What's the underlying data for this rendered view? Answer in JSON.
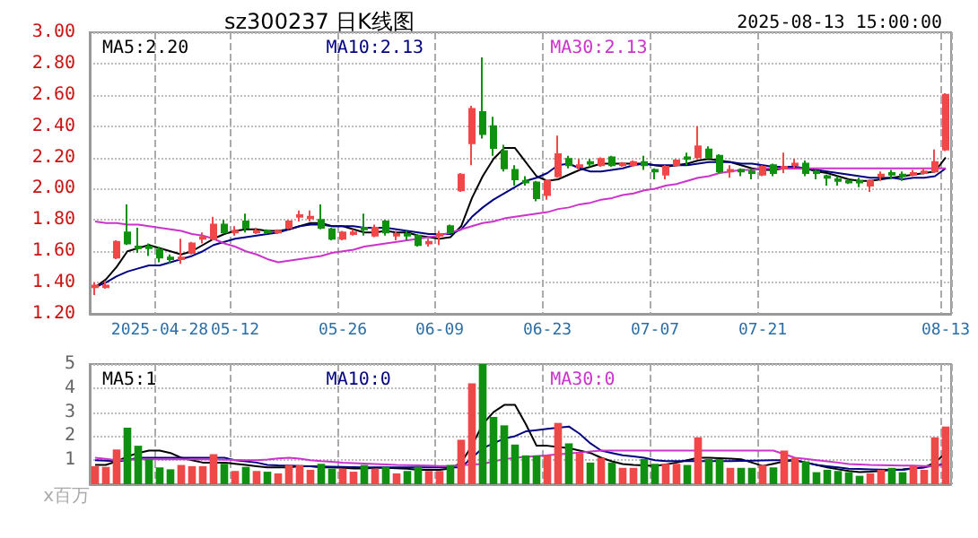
{
  "chart_data": [
    {
      "type": "candlestick",
      "title": "sz300237 日K线图",
      "subtitle": "2025-08-13 15:00:00",
      "categories": [
        null,
        null,
        null,
        null,
        null,
        null,
        "2025-04-28",
        null,
        null,
        null,
        null,
        null,
        null,
        "05-12",
        null,
        null,
        null,
        null,
        null,
        null,
        null,
        null,
        null,
        "05-26",
        null,
        null,
        null,
        null,
        null,
        null,
        null,
        null,
        "06-09",
        null,
        null,
        null,
        null,
        null,
        null,
        null,
        null,
        null,
        "06-23",
        null,
        null,
        null,
        null,
        null,
        null,
        null,
        null,
        null,
        "07-07",
        null,
        null,
        null,
        null,
        null,
        null,
        null,
        null,
        null,
        "07-21",
        null,
        null,
        null,
        null,
        null,
        null,
        null,
        null,
        null,
        null,
        null,
        null,
        null,
        null,
        null,
        null,
        "08-13"
      ],
      "ohlc": [
        [
          1.37,
          1.4,
          1.32,
          1.38
        ],
        [
          1.37,
          1.41,
          1.36,
          1.38
        ],
        [
          1.56,
          1.67,
          1.55,
          1.66
        ],
        [
          1.72,
          1.9,
          1.64,
          1.65
        ],
        [
          1.63,
          1.75,
          1.59,
          1.62
        ],
        [
          1.63,
          1.65,
          1.57,
          1.62
        ],
        [
          1.61,
          1.63,
          1.53,
          1.56
        ],
        [
          1.56,
          1.58,
          1.52,
          1.55
        ],
        [
          1.55,
          1.68,
          1.52,
          1.56
        ],
        [
          1.59,
          1.66,
          1.58,
          1.65
        ],
        [
          1.68,
          1.72,
          1.65,
          1.69
        ],
        [
          1.68,
          1.82,
          1.67,
          1.77
        ],
        [
          1.77,
          1.8,
          1.71,
          1.72
        ],
        [
          1.72,
          1.76,
          1.7,
          1.73
        ],
        [
          1.79,
          1.84,
          1.72,
          1.75
        ],
        [
          1.72,
          1.75,
          1.71,
          1.73
        ],
        [
          1.73,
          1.74,
          1.71,
          1.72
        ],
        [
          1.72,
          1.74,
          1.71,
          1.73
        ],
        [
          1.75,
          1.8,
          1.74,
          1.79
        ],
        [
          1.82,
          1.86,
          1.79,
          1.83
        ],
        [
          1.81,
          1.86,
          1.79,
          1.82
        ],
        [
          1.8,
          1.9,
          1.74,
          1.75
        ],
        [
          1.74,
          1.75,
          1.67,
          1.68
        ],
        [
          1.68,
          1.73,
          1.67,
          1.72
        ],
        [
          1.71,
          1.74,
          1.7,
          1.72
        ],
        [
          1.75,
          1.84,
          1.7,
          1.74
        ],
        [
          1.7,
          1.77,
          1.69,
          1.75
        ],
        [
          1.79,
          1.8,
          1.7,
          1.72
        ],
        [
          1.7,
          1.73,
          1.67,
          1.71
        ],
        [
          1.71,
          1.73,
          1.67,
          1.7
        ],
        [
          1.7,
          1.71,
          1.63,
          1.64
        ],
        [
          1.65,
          1.68,
          1.63,
          1.66
        ],
        [
          1.7,
          1.73,
          1.64,
          1.71
        ],
        [
          1.76,
          1.77,
          1.71,
          1.72
        ],
        [
          1.99,
          2.1,
          1.98,
          2.09
        ],
        [
          2.29,
          2.53,
          2.15,
          2.51
        ],
        [
          2.49,
          2.84,
          2.32,
          2.35
        ],
        [
          2.4,
          2.46,
          2.21,
          2.26
        ],
        [
          2.24,
          2.28,
          2.11,
          2.13
        ],
        [
          2.12,
          2.15,
          2.02,
          2.06
        ],
        [
          2.05,
          2.08,
          2.02,
          2.04
        ],
        [
          2.04,
          2.05,
          1.92,
          1.94
        ],
        [
          1.96,
          2.06,
          1.93,
          2.05
        ],
        [
          2.08,
          2.34,
          2.07,
          2.22
        ],
        [
          2.19,
          2.21,
          2.13,
          2.15
        ],
        [
          2.14,
          2.19,
          2.12,
          2.15
        ],
        [
          2.17,
          2.19,
          2.14,
          2.16
        ],
        [
          2.15,
          2.2,
          2.14,
          2.19
        ],
        [
          2.2,
          2.21,
          2.14,
          2.15
        ],
        [
          2.15,
          2.17,
          2.14,
          2.16
        ],
        [
          2.15,
          2.18,
          2.14,
          2.17
        ],
        [
          2.17,
          2.21,
          2.12,
          2.15
        ],
        [
          2.12,
          2.13,
          2.06,
          2.11
        ],
        [
          2.09,
          2.15,
          2.06,
          2.14
        ],
        [
          2.15,
          2.19,
          2.14,
          2.18
        ],
        [
          2.2,
          2.23,
          2.15,
          2.19
        ],
        [
          2.2,
          2.4,
          2.19,
          2.27
        ],
        [
          2.25,
          2.27,
          2.19,
          2.2
        ],
        [
          2.21,
          2.22,
          2.1,
          2.11
        ],
        [
          2.11,
          2.15,
          2.07,
          2.12
        ],
        [
          2.12,
          2.13,
          2.08,
          2.11
        ],
        [
          2.11,
          2.13,
          2.06,
          2.1
        ],
        [
          2.09,
          2.15,
          2.08,
          2.14
        ],
        [
          2.15,
          2.16,
          2.08,
          2.1
        ],
        [
          2.13,
          2.23,
          2.1,
          2.14
        ],
        [
          2.15,
          2.19,
          2.13,
          2.16
        ],
        [
          2.16,
          2.18,
          2.08,
          2.1
        ],
        [
          2.11,
          2.12,
          2.06,
          2.1
        ],
        [
          2.08,
          2.09,
          2.02,
          2.07
        ],
        [
          2.06,
          2.08,
          2.02,
          2.05
        ],
        [
          2.05,
          2.06,
          2.03,
          2.04
        ],
        [
          2.05,
          2.07,
          2.01,
          2.04
        ],
        [
          2.02,
          2.06,
          1.98,
          2.05
        ],
        [
          2.08,
          2.11,
          2.05,
          2.09
        ],
        [
          2.1,
          2.12,
          2.06,
          2.09
        ],
        [
          2.09,
          2.11,
          2.05,
          2.08
        ],
        [
          2.09,
          2.12,
          2.08,
          2.1
        ],
        [
          2.1,
          2.13,
          2.09,
          2.11
        ],
        [
          2.11,
          2.25,
          2.1,
          2.17
        ],
        [
          2.25,
          2.61,
          2.24,
          2.6
        ]
      ],
      "colors": [
        "#f04848",
        "#f04848",
        "#f04848",
        "#109010",
        "#109010",
        "#109010",
        "#109010",
        "#109010",
        "#f04848",
        "#f04848",
        "#f04848",
        "#f04848",
        "#109010",
        "#f04848",
        "#109010",
        "#f04848",
        "#109010",
        "#f04848",
        "#f04848",
        "#f04848",
        "#f04848",
        "#109010",
        "#109010",
        "#f04848",
        "#f04848",
        "#109010",
        "#f04848",
        "#109010",
        "#f04848",
        "#109010",
        "#109010",
        "#f04848",
        "#f04848",
        "#109010",
        "#f04848",
        "#f04848",
        "#109010",
        "#109010",
        "#109010",
        "#109010",
        "#109010",
        "#109010",
        "#f04848",
        "#f04848",
        "#109010",
        "#f04848",
        "#109010",
        "#f04848",
        "#109010",
        "#f04848",
        "#f04848",
        "#109010",
        "#109010",
        "#f04848",
        "#f04848",
        "#109010",
        "#f04848",
        "#109010",
        "#109010",
        "#f04848",
        "#109010",
        "#109010",
        "#f04848",
        "#109010",
        "#f04848",
        "#f04848",
        "#109010",
        "#109010",
        "#109010",
        "#109010",
        "#109010",
        "#109010",
        "#f04848",
        "#f04848",
        "#109010",
        "#109010",
        "#f04848",
        "#f04848",
        "#f04848",
        "#f04848"
      ],
      "series": [
        {
          "type": "line",
          "name": "MA5:2.20",
          "color": "#000000",
          "values": [
            1.37,
            1.42,
            1.5,
            1.6,
            1.62,
            1.64,
            1.62,
            1.6,
            1.58,
            1.6,
            1.64,
            1.68,
            1.71,
            1.73,
            1.74,
            1.74,
            1.73,
            1.73,
            1.74,
            1.76,
            1.78,
            1.78,
            1.76,
            1.76,
            1.74,
            1.72,
            1.72,
            1.73,
            1.72,
            1.72,
            1.7,
            1.69,
            1.68,
            1.69,
            1.76,
            1.94,
            2.08,
            2.19,
            2.26,
            2.26,
            2.17,
            2.08,
            2.05,
            2.06,
            2.09,
            2.12,
            2.14,
            2.16,
            2.16,
            2.16,
            2.16,
            2.16,
            2.15,
            2.14,
            2.15,
            2.16,
            2.18,
            2.19,
            2.18,
            2.17,
            2.15,
            2.13,
            2.12,
            2.12,
            2.13,
            2.13,
            2.13,
            2.11,
            2.1,
            2.08,
            2.06,
            2.05,
            2.05,
            2.06,
            2.07,
            2.08,
            2.09,
            2.1,
            2.11,
            2.2
          ]
        },
        {
          "type": "line",
          "name": "MA10:2.13",
          "color": "#000080",
          "values": [
            1.37,
            1.4,
            1.44,
            1.47,
            1.49,
            1.51,
            1.51,
            1.53,
            1.55,
            1.57,
            1.6,
            1.64,
            1.66,
            1.68,
            1.69,
            1.7,
            1.71,
            1.72,
            1.74,
            1.76,
            1.77,
            1.77,
            1.76,
            1.76,
            1.76,
            1.75,
            1.75,
            1.75,
            1.74,
            1.73,
            1.72,
            1.71,
            1.71,
            1.71,
            1.74,
            1.82,
            1.88,
            1.93,
            1.97,
            2.01,
            2.05,
            2.07,
            2.1,
            2.15,
            2.16,
            2.13,
            2.11,
            2.11,
            2.12,
            2.13,
            2.15,
            2.16,
            2.15,
            2.15,
            2.15,
            2.15,
            2.16,
            2.17,
            2.17,
            2.17,
            2.16,
            2.16,
            2.15,
            2.14,
            2.14,
            2.14,
            2.13,
            2.12,
            2.11,
            2.1,
            2.09,
            2.08,
            2.07,
            2.07,
            2.07,
            2.06,
            2.07,
            2.07,
            2.08,
            2.13
          ]
        },
        {
          "type": "line",
          "name": "MA30:2.13",
          "color": "#cc33cc",
          "values": [
            1.79,
            1.78,
            1.78,
            1.77,
            1.77,
            1.76,
            1.75,
            1.74,
            1.73,
            1.71,
            1.7,
            1.68,
            1.65,
            1.63,
            1.6,
            1.58,
            1.55,
            1.53,
            1.54,
            1.55,
            1.56,
            1.57,
            1.59,
            1.6,
            1.61,
            1.63,
            1.64,
            1.65,
            1.66,
            1.67,
            1.68,
            1.69,
            1.7,
            1.72,
            1.74,
            1.76,
            1.78,
            1.79,
            1.81,
            1.82,
            1.83,
            1.84,
            1.85,
            1.87,
            1.88,
            1.9,
            1.91,
            1.93,
            1.94,
            1.96,
            1.97,
            1.99,
            2.0,
            2.02,
            2.03,
            2.05,
            2.07,
            2.08,
            2.1,
            2.11,
            2.12,
            2.12,
            2.13,
            2.13,
            2.13,
            2.13,
            2.13,
            2.13,
            2.13,
            2.13,
            2.13,
            2.13,
            2.13,
            2.13,
            2.13,
            2.13,
            2.13,
            2.13,
            2.13,
            2.13
          ]
        }
      ],
      "ylim": [
        1.2,
        3.0
      ],
      "yticks": [
        {
          "value": 1.2,
          "label": "1.20"
        },
        {
          "value": 1.4,
          "label": "1.40"
        },
        {
          "value": 1.6,
          "label": "1.60"
        },
        {
          "value": 1.8,
          "label": "1.80"
        },
        {
          "value": 2.0,
          "label": "2.00"
        },
        {
          "value": 2.2,
          "label": "2.20"
        },
        {
          "value": 2.4,
          "label": "2.40"
        },
        {
          "value": 2.6,
          "label": "2.60"
        },
        {
          "value": 2.8,
          "label": "2.80"
        },
        {
          "value": 3.0,
          "label": "3.00"
        }
      ],
      "grid": true,
      "legend": "top left"
    },
    {
      "type": "bar",
      "ylabel": "x百万",
      "categories": [
        null,
        null,
        null,
        null,
        null,
        null,
        null,
        null,
        null,
        null,
        null,
        null,
        null,
        null,
        null,
        null,
        null,
        null,
        null,
        null,
        null,
        null,
        null,
        null,
        null,
        null,
        null,
        null,
        null,
        null,
        null,
        null,
        null,
        null,
        null,
        null,
        null,
        null,
        null,
        null,
        null,
        null,
        null,
        null,
        null,
        null,
        null,
        null,
        null,
        null,
        null,
        null,
        null,
        null,
        null,
        null,
        null,
        null,
        null,
        null,
        null,
        null,
        null,
        null,
        null,
        null,
        null,
        null,
        null,
        null,
        null,
        null,
        null,
        null,
        null,
        null,
        null,
        null,
        null,
        null
      ],
      "values": [
        0.75,
        0.72,
        1.45,
        2.35,
        1.6,
        1.05,
        0.7,
        0.62,
        0.8,
        0.75,
        0.75,
        1.25,
        0.85,
        0.55,
        0.72,
        0.55,
        0.52,
        0.45,
        0.8,
        0.8,
        0.6,
        0.85,
        0.65,
        0.65,
        0.52,
        0.8,
        0.65,
        0.72,
        0.45,
        0.55,
        0.72,
        0.55,
        0.55,
        0.8,
        1.85,
        4.2,
        5.0,
        2.8,
        2.45,
        1.65,
        1.2,
        1.2,
        1.2,
        2.55,
        1.7,
        1.3,
        0.9,
        1.1,
        0.9,
        0.68,
        0.68,
        1.05,
        0.85,
        0.85,
        0.85,
        0.8,
        1.95,
        1.05,
        1.05,
        0.68,
        0.68,
        0.68,
        0.8,
        0.7,
        1.4,
        1.1,
        0.95,
        0.5,
        0.6,
        0.55,
        0.5,
        0.35,
        0.45,
        0.6,
        0.68,
        0.5,
        0.75,
        0.6,
        1.95,
        2.4
      ],
      "colors": [
        "#f04848",
        "#f04848",
        "#f04848",
        "#109010",
        "#109010",
        "#109010",
        "#109010",
        "#109010",
        "#f04848",
        "#f04848",
        "#f04848",
        "#f04848",
        "#109010",
        "#f04848",
        "#109010",
        "#f04848",
        "#109010",
        "#f04848",
        "#f04848",
        "#f04848",
        "#f04848",
        "#109010",
        "#109010",
        "#f04848",
        "#f04848",
        "#109010",
        "#f04848",
        "#109010",
        "#f04848",
        "#109010",
        "#109010",
        "#f04848",
        "#f04848",
        "#109010",
        "#f04848",
        "#f04848",
        "#109010",
        "#109010",
        "#109010",
        "#109010",
        "#109010",
        "#109010",
        "#f04848",
        "#f04848",
        "#109010",
        "#f04848",
        "#109010",
        "#f04848",
        "#109010",
        "#f04848",
        "#f04848",
        "#109010",
        "#109010",
        "#f04848",
        "#f04848",
        "#109010",
        "#f04848",
        "#109010",
        "#109010",
        "#f04848",
        "#109010",
        "#109010",
        "#f04848",
        "#109010",
        "#f04848",
        "#f04848",
        "#109010",
        "#109010",
        "#109010",
        "#109010",
        "#109010",
        "#109010",
        "#f04848",
        "#f04848",
        "#109010",
        "#109010",
        "#f04848",
        "#f04848",
        "#f04848",
        "#f04848"
      ],
      "series": [
        {
          "type": "line",
          "name": "MA5:1",
          "color": "#000000",
          "values": [
            0.8,
            0.8,
            0.95,
            1.15,
            1.3,
            1.4,
            1.4,
            1.3,
            1.1,
            1.0,
            0.9,
            0.9,
            0.9,
            0.85,
            0.8,
            0.75,
            0.7,
            0.7,
            0.7,
            0.75,
            0.75,
            0.7,
            0.7,
            0.68,
            0.65,
            0.65,
            0.68,
            0.68,
            0.66,
            0.64,
            0.6,
            0.6,
            0.6,
            0.65,
            0.9,
            1.6,
            2.5,
            3.0,
            3.3,
            3.3,
            2.5,
            1.6,
            1.6,
            1.55,
            1.5,
            1.4,
            1.3,
            1.1,
            0.95,
            0.84,
            0.8,
            0.78,
            0.76,
            0.82,
            0.9,
            1.0,
            1.1,
            1.1,
            1.08,
            1.06,
            1.04,
            0.9,
            0.76,
            0.85,
            0.95,
            1.0,
            0.9,
            0.8,
            0.7,
            0.62,
            0.55,
            0.5,
            0.52,
            0.55,
            0.6,
            0.62,
            0.66,
            0.7,
            0.9,
            1.3
          ]
        },
        {
          "type": "line",
          "name": "MA10:0",
          "color": "#000080",
          "values": [
            1.0,
            0.98,
            0.95,
            1.0,
            1.1,
            1.1,
            1.1,
            1.1,
            1.1,
            1.1,
            1.1,
            1.1,
            1.1,
            1.0,
            0.95,
            0.9,
            0.8,
            0.78,
            0.77,
            0.76,
            0.75,
            0.74,
            0.73,
            0.72,
            0.71,
            0.7,
            0.7,
            0.7,
            0.7,
            0.7,
            0.7,
            0.7,
            0.7,
            0.7,
            0.7,
            1.1,
            1.5,
            1.7,
            1.9,
            2.0,
            2.2,
            2.25,
            2.3,
            2.35,
            2.4,
            2.1,
            1.7,
            1.4,
            1.3,
            1.2,
            1.16,
            1.1,
            1.0,
            0.96,
            0.96,
            0.96,
            0.96,
            0.96,
            0.96,
            0.96,
            0.97,
            0.98,
            0.99,
            1.0,
            1.0,
            1.0,
            0.9,
            0.8,
            0.75,
            0.7,
            0.64,
            0.63,
            0.62,
            0.61,
            0.6,
            0.6,
            0.65,
            0.7,
            0.78,
            0.84
          ]
        },
        {
          "type": "line",
          "name": "MA30:0",
          "color": "#cc33cc",
          "values": [
            1.1,
            1.05,
            1.0,
            1.02,
            1.04,
            1.04,
            1.04,
            1.04,
            1.04,
            1.04,
            1.04,
            1.03,
            1.02,
            1.01,
            1.0,
            1.0,
            1.03,
            1.07,
            1.1,
            1.06,
            1.0,
            0.96,
            0.93,
            0.9,
            0.88,
            0.86,
            0.84,
            0.82,
            0.8,
            0.79,
            0.78,
            0.77,
            0.76,
            0.76,
            0.78,
            0.82,
            0.84,
            0.95,
            1.04,
            1.1,
            1.14,
            1.17,
            1.2,
            1.24,
            1.28,
            1.32,
            1.36,
            1.4,
            1.4,
            1.4,
            1.4,
            1.4,
            1.4,
            1.4,
            1.4,
            1.4,
            1.4,
            1.4,
            1.4,
            1.4,
            1.4,
            1.4,
            1.4,
            1.4,
            1.25,
            1.1,
            1.05,
            1.0,
            0.95,
            0.9,
            0.84,
            0.82,
            0.8,
            0.79,
            0.78,
            0.77,
            0.77,
            0.76,
            0.76,
            0.8
          ]
        }
      ],
      "ylim": [
        0,
        5
      ],
      "yticks": [
        1,
        2,
        3,
        4,
        5
      ],
      "grid": true,
      "legend": "top left",
      "tick_labels": "y"
    }
  ]
}
